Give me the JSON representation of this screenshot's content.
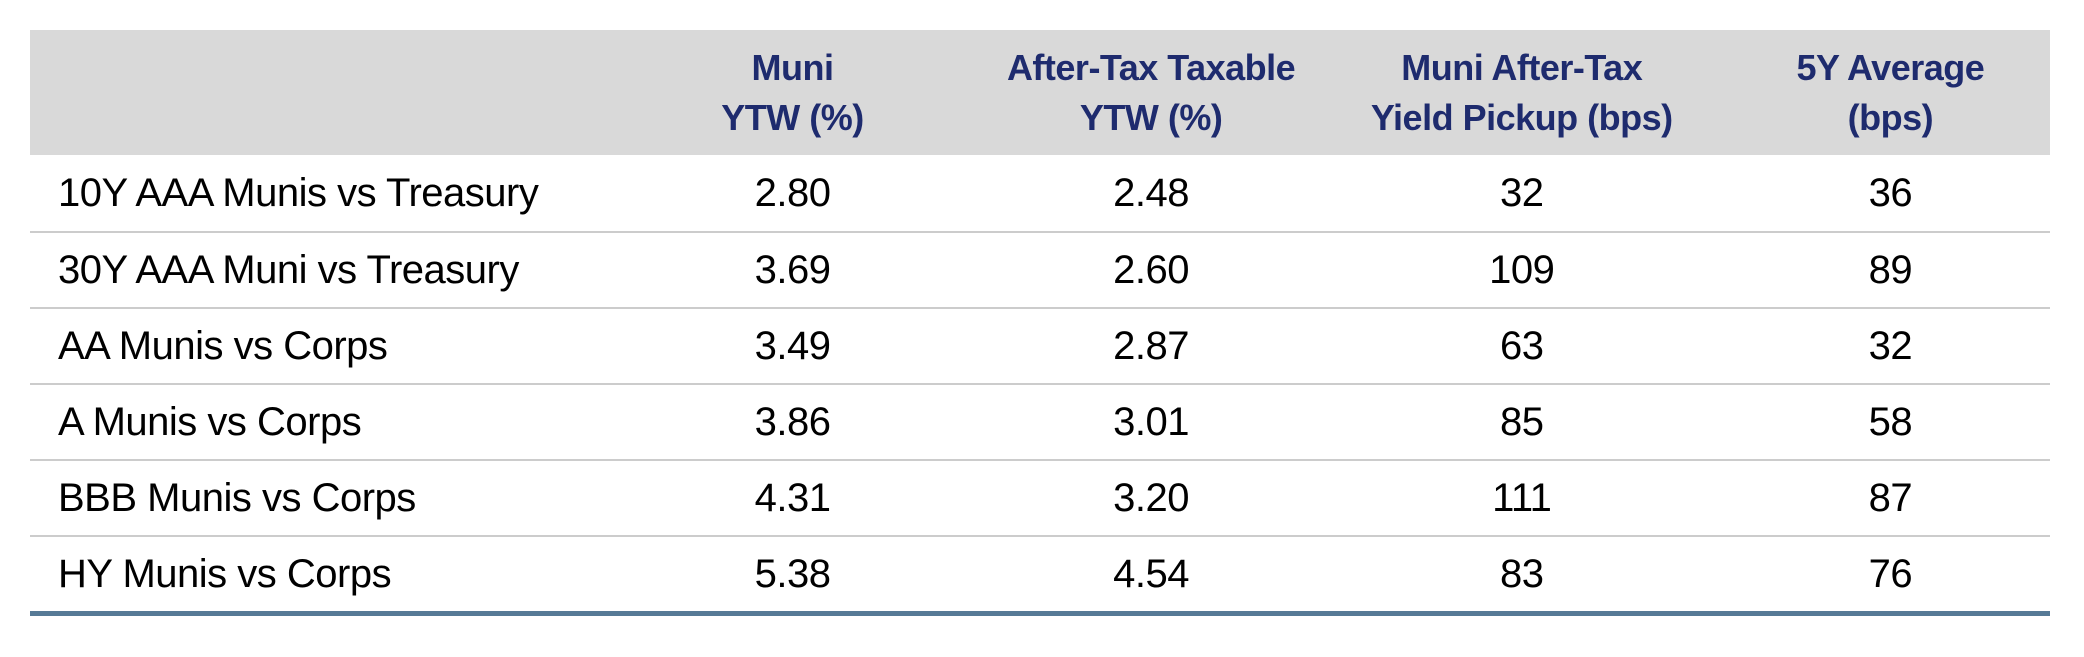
{
  "colors": {
    "header_bg": "#d9d9d9",
    "header_text": "#1e2b6e",
    "body_text": "#000000",
    "row_divider": "#cccccc",
    "bottom_rule": "#567a96"
  },
  "table": {
    "header": {
      "columns": [
        {
          "line1": "",
          "line2": ""
        },
        {
          "line1": "Muni",
          "line2": "YTW (%)"
        },
        {
          "line1": "After-Tax Taxable",
          "line2": "YTW (%)"
        },
        {
          "line1": "Muni After-Tax",
          "line2": "Yield Pickup (bps)"
        },
        {
          "line1": "5Y Average",
          "line2": "(bps)"
        }
      ]
    },
    "rows": [
      {
        "label": "10Y AAA Munis vs Treasury",
        "muni_ytw": "2.80",
        "after_tax_ytw": "2.48",
        "pickup_bps": "32",
        "avg_5y_bps": "36"
      },
      {
        "label": "30Y AAA Muni vs Treasury",
        "muni_ytw": "3.69",
        "after_tax_ytw": "2.60",
        "pickup_bps": "109",
        "avg_5y_bps": "89"
      },
      {
        "label": "AA Munis vs Corps",
        "muni_ytw": "3.49",
        "after_tax_ytw": "2.87",
        "pickup_bps": "63",
        "avg_5y_bps": "32"
      },
      {
        "label": "A Munis vs Corps",
        "muni_ytw": "3.86",
        "after_tax_ytw": "3.01",
        "pickup_bps": "85",
        "avg_5y_bps": "58"
      },
      {
        "label": "BBB Munis vs Corps",
        "muni_ytw": "4.31",
        "after_tax_ytw": "3.20",
        "pickup_bps": "111",
        "avg_5y_bps": "87"
      },
      {
        "label": "HY Munis vs Corps",
        "muni_ytw": "5.38",
        "after_tax_ytw": "4.54",
        "pickup_bps": "83",
        "avg_5y_bps": "76"
      }
    ]
  },
  "chart_data": {
    "type": "table",
    "columns": [
      "",
      "Muni YTW (%)",
      "After-Tax Taxable YTW (%)",
      "Muni After-Tax Yield Pickup (bps)",
      "5Y Average (bps)"
    ],
    "rows": [
      [
        "10Y AAA Munis vs Treasury",
        2.8,
        2.48,
        32,
        36
      ],
      [
        "30Y AAA Muni vs Treasury",
        3.69,
        2.6,
        109,
        89
      ],
      [
        "AA Munis vs Corps",
        3.49,
        2.87,
        63,
        32
      ],
      [
        "A Munis vs Corps",
        3.86,
        3.01,
        85,
        58
      ],
      [
        "BBB Munis vs Corps",
        4.31,
        3.2,
        111,
        87
      ],
      [
        "HY Munis vs Corps",
        5.38,
        4.54,
        83,
        76
      ]
    ],
    "title": "",
    "legend": "none",
    "grid": "horizontal row dividers only"
  }
}
